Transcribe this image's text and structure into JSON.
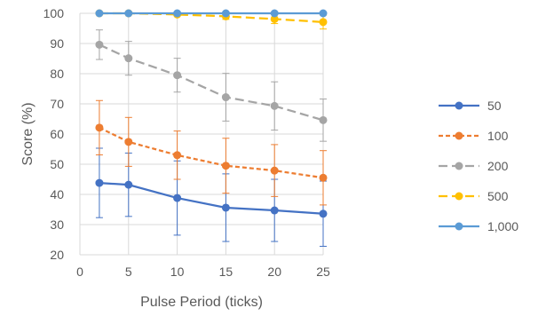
{
  "chart_data": {
    "type": "line",
    "xlabel": "Pulse Period (ticks)",
    "ylabel": "Score (%)",
    "xlim": [
      0,
      25
    ],
    "ylim": [
      20,
      100
    ],
    "xticks": [
      0,
      5,
      10,
      15,
      20,
      25
    ],
    "yticks": [
      20,
      30,
      40,
      50,
      60,
      70,
      80,
      90,
      100
    ],
    "x": [
      2,
      5,
      10,
      15,
      20,
      25
    ],
    "grid": true,
    "legend_position": "right",
    "series": [
      {
        "name": "50",
        "color": "#4472C4",
        "dash": "solid",
        "values": [
          43.8,
          43.2,
          38.8,
          35.6,
          34.7,
          33.6
        ],
        "error": [
          11.5,
          10.5,
          12.3,
          11.2,
          10.3,
          10.8
        ]
      },
      {
        "name": "100",
        "color": "#ED7D31",
        "dash": "short-dash",
        "values": [
          62.1,
          57.4,
          53.0,
          49.5,
          47.9,
          45.5
        ],
        "error": [
          9.0,
          8.1,
          8.0,
          9.1,
          8.6,
          9.0
        ]
      },
      {
        "name": "200",
        "color": "#A5A5A5",
        "dash": "long-dash",
        "values": [
          89.6,
          85.1,
          79.5,
          72.2,
          69.3,
          64.6
        ],
        "error": [
          4.9,
          5.6,
          5.6,
          7.9,
          8.0,
          7.0
        ]
      },
      {
        "name": "500",
        "color": "#FFC000",
        "dash": "long-dash",
        "values": [
          100,
          100,
          99.6,
          99.0,
          98.1,
          97.1
        ],
        "error": [
          0,
          0,
          0.4,
          1.0,
          1.5,
          2.3
        ]
      },
      {
        "name": "1,000",
        "color": "#5B9BD5",
        "dash": "solid",
        "values": [
          100,
          100,
          100,
          100,
          100,
          100
        ],
        "error": [
          0,
          0,
          0,
          0,
          0,
          0
        ]
      }
    ]
  }
}
